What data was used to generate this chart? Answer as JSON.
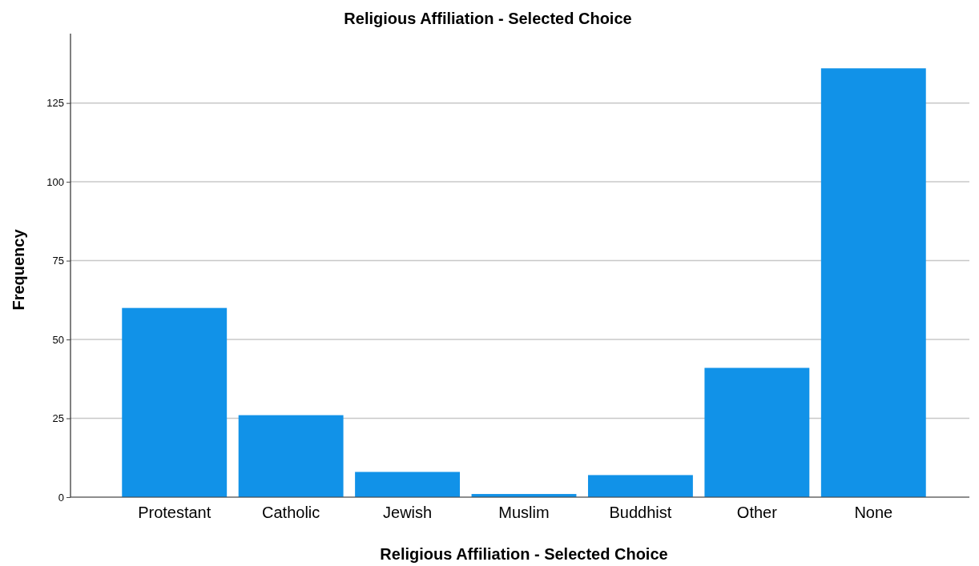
{
  "chart_data": {
    "type": "bar",
    "title": "Religious Affiliation - Selected Choice",
    "xlabel": "Religious Affiliation - Selected Choice",
    "ylabel": "Frequency",
    "categories": [
      "Protestant",
      "Catholic",
      "Jewish",
      "Muslim",
      "Buddhist",
      "Other",
      "None"
    ],
    "values": [
      60,
      26,
      8,
      1,
      7,
      41,
      136
    ],
    "color": "#1192e8",
    "ylim": [
      0,
      147
    ],
    "yticks": [
      0,
      25,
      50,
      75,
      100,
      125
    ],
    "grid": "y"
  }
}
